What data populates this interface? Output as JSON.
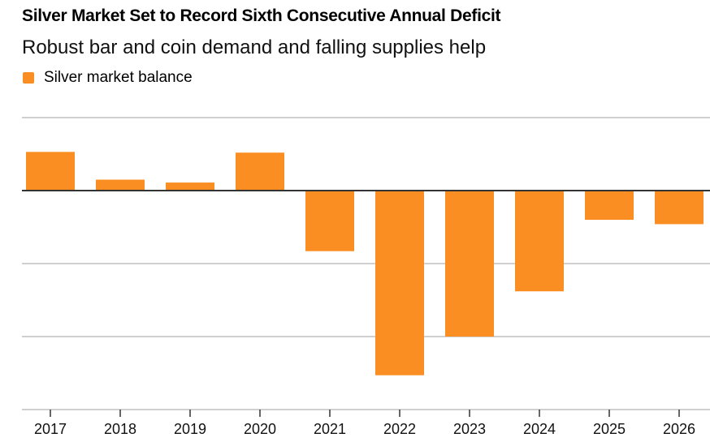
{
  "chart_data": {
    "type": "bar",
    "title": "Silver Market Set to Record Sixth Consecutive Annual Deficit",
    "subtitle": "Robust bar and coin demand and falling supplies help",
    "xlabel": "",
    "ylabel": "",
    "categories": [
      "2017",
      "2018",
      "2019",
      "2020",
      "2021",
      "2022",
      "2023",
      "2024",
      "2025",
      "2026"
    ],
    "series": [
      {
        "name": "Silver market balance",
        "color": "#fb8e23",
        "values": [
          53,
          15,
          11,
          52,
          -83,
          -253,
          -200,
          -138,
          -40,
          -46
        ]
      }
    ],
    "ylim": [
      -300,
      100
    ],
    "gridlines": [
      100,
      0,
      -100,
      -200,
      -300
    ],
    "grid": true,
    "legend_position": "top-left",
    "zero_line_color": "#333333",
    "grid_color": "#d0d0d0"
  }
}
